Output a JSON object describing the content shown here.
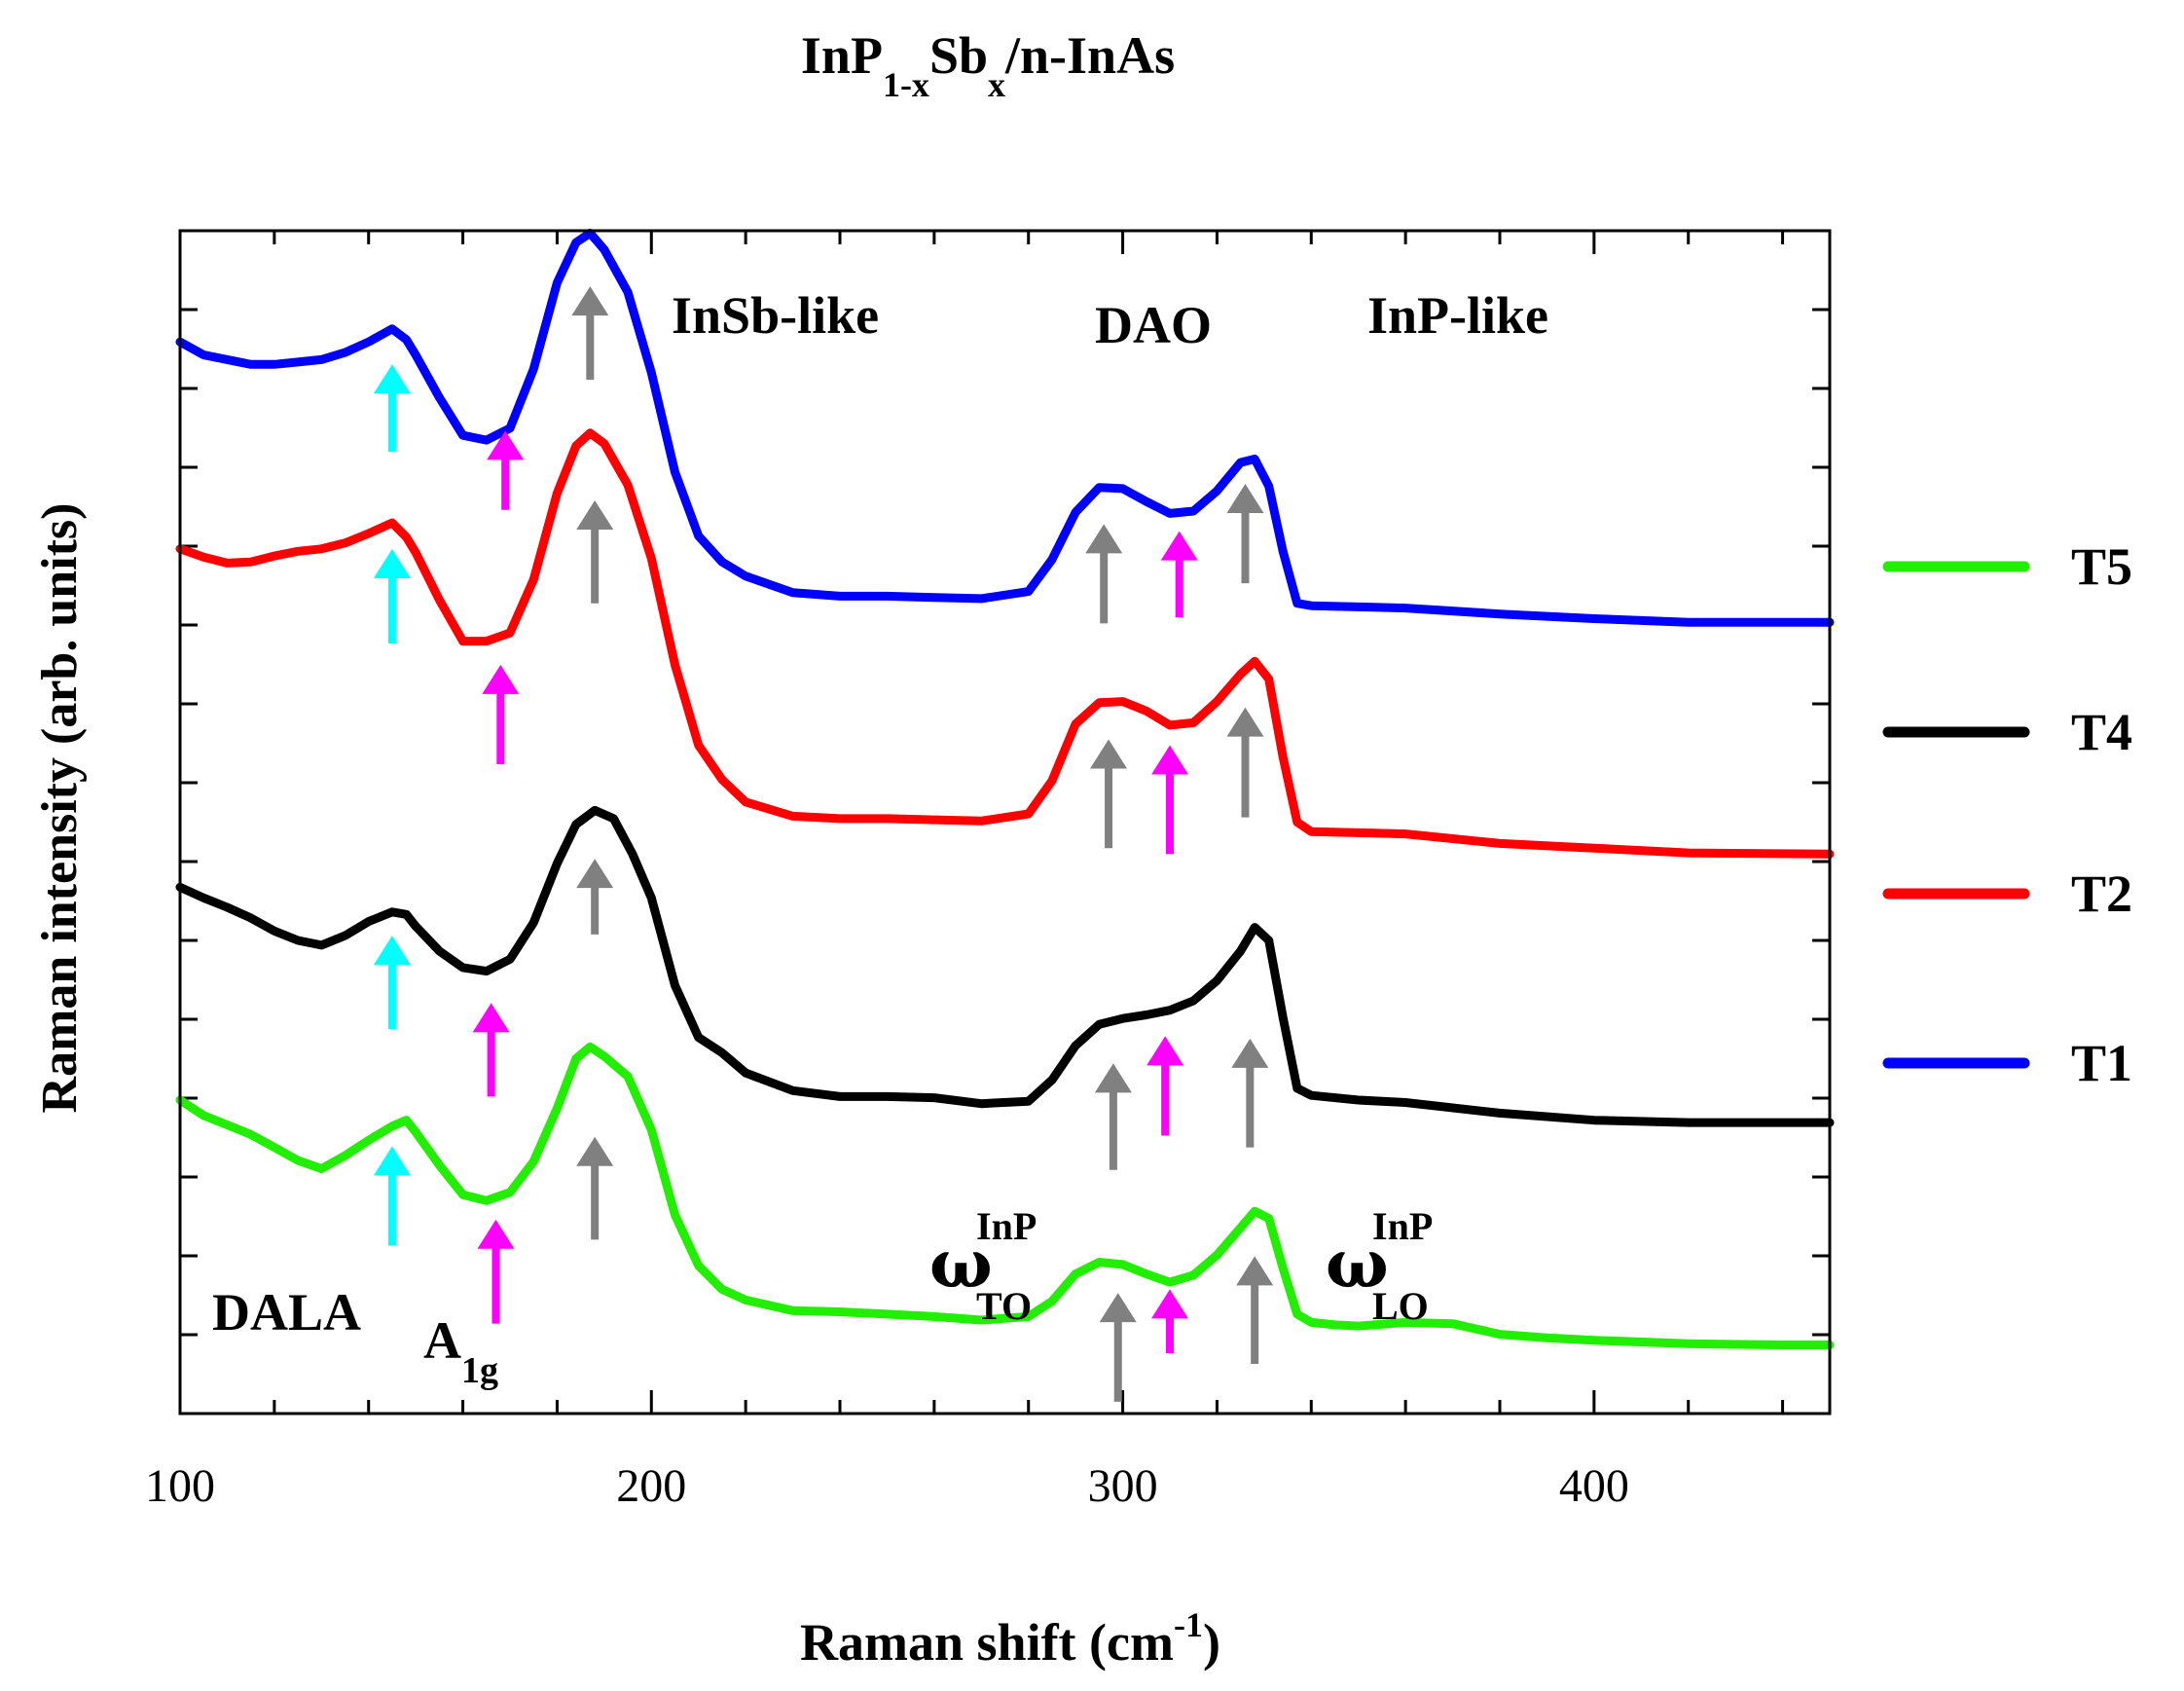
{
  "chart_data": {
    "type": "line",
    "title": {
      "parts": [
        {
          "text": "InP",
          "sub": false
        },
        {
          "text": "1-x",
          "sub": true
        },
        {
          "text": "Sb",
          "sub": false
        },
        {
          "text": "x",
          "sub": true
        },
        {
          "text": "/n-InAs",
          "sub": false
        }
      ]
    },
    "xlabel": {
      "main": "Raman shift (cm",
      "sup": "-1",
      "end": ")"
    },
    "ylabel": "Raman intensity (arb. units)",
    "xlim": [
      100,
      450
    ],
    "ylim": [
      0,
      100
    ],
    "xticks": [
      100,
      200,
      300,
      400
    ],
    "x_minor_step": 20,
    "y_minor_step": 6.667,
    "legend": {
      "placement": "right",
      "entries": [
        {
          "name": "T5",
          "color": "#22ee00"
        },
        {
          "name": "T4",
          "color": "#000000"
        },
        {
          "name": "T2",
          "color": "#ff0000"
        },
        {
          "name": "T1",
          "color": "#0000ff"
        }
      ]
    },
    "series": [
      {
        "name": "T5",
        "color": "#22ee00",
        "points": [
          [
            100,
            26.5
          ],
          [
            105,
            25.2
          ],
          [
            110,
            24.4
          ],
          [
            115,
            23.6
          ],
          [
            120,
            22.5
          ],
          [
            125,
            21.4
          ],
          [
            130,
            20.7
          ],
          [
            135,
            21.8
          ],
          [
            140,
            23.1
          ],
          [
            145,
            24.3
          ],
          [
            148,
            24.8
          ],
          [
            150,
            23.8
          ],
          [
            155,
            21.0
          ],
          [
            160,
            18.5
          ],
          [
            165,
            18.0
          ],
          [
            170,
            18.7
          ],
          [
            175,
            21.3
          ],
          [
            180,
            25.8
          ],
          [
            184,
            30.0
          ],
          [
            187,
            31.0
          ],
          [
            190,
            30.2
          ],
          [
            195,
            28.5
          ],
          [
            200,
            24.0
          ],
          [
            205,
            16.8
          ],
          [
            210,
            12.5
          ],
          [
            215,
            10.5
          ],
          [
            220,
            9.6
          ],
          [
            230,
            8.7
          ],
          [
            240,
            8.6
          ],
          [
            250,
            8.4
          ],
          [
            260,
            8.2
          ],
          [
            270,
            7.9
          ],
          [
            280,
            8.2
          ],
          [
            285,
            9.5
          ],
          [
            290,
            11.8
          ],
          [
            295,
            12.8
          ],
          [
            300,
            12.6
          ],
          [
            305,
            11.8
          ],
          [
            310,
            11.1
          ],
          [
            315,
            11.7
          ],
          [
            320,
            13.4
          ],
          [
            325,
            15.7
          ],
          [
            328,
            17.1
          ],
          [
            331,
            16.5
          ],
          [
            334,
            12.3
          ],
          [
            337,
            8.4
          ],
          [
            340,
            7.7
          ],
          [
            345,
            7.5
          ],
          [
            350,
            7.4
          ],
          [
            360,
            7.7
          ],
          [
            370,
            7.6
          ],
          [
            380,
            6.7
          ],
          [
            390,
            6.4
          ],
          [
            400,
            6.2
          ],
          [
            420,
            5.9
          ],
          [
            440,
            5.8
          ],
          [
            450,
            5.8
          ]
        ]
      },
      {
        "name": "T4",
        "color": "#000000",
        "points": [
          [
            100,
            44.5
          ],
          [
            105,
            43.6
          ],
          [
            110,
            42.8
          ],
          [
            115,
            41.9
          ],
          [
            120,
            40.8
          ],
          [
            125,
            40.0
          ],
          [
            130,
            39.6
          ],
          [
            135,
            40.4
          ],
          [
            140,
            41.6
          ],
          [
            145,
            42.4
          ],
          [
            148,
            42.2
          ],
          [
            150,
            41.2
          ],
          [
            155,
            39.1
          ],
          [
            160,
            37.7
          ],
          [
            165,
            37.4
          ],
          [
            170,
            38.4
          ],
          [
            175,
            41.5
          ],
          [
            180,
            46.5
          ],
          [
            184,
            49.8
          ],
          [
            188,
            51.0
          ],
          [
            192,
            50.3
          ],
          [
            196,
            47.3
          ],
          [
            200,
            43.6
          ],
          [
            205,
            36.2
          ],
          [
            210,
            31.8
          ],
          [
            215,
            30.5
          ],
          [
            220,
            28.8
          ],
          [
            230,
            27.3
          ],
          [
            240,
            26.8
          ],
          [
            250,
            26.8
          ],
          [
            260,
            26.7
          ],
          [
            270,
            26.2
          ],
          [
            280,
            26.4
          ],
          [
            285,
            28.2
          ],
          [
            290,
            31.1
          ],
          [
            295,
            32.9
          ],
          [
            300,
            33.4
          ],
          [
            305,
            33.7
          ],
          [
            310,
            34.1
          ],
          [
            315,
            34.9
          ],
          [
            320,
            36.6
          ],
          [
            325,
            39.1
          ],
          [
            328,
            41.1
          ],
          [
            331,
            40.0
          ],
          [
            334,
            33.5
          ],
          [
            337,
            27.5
          ],
          [
            340,
            26.9
          ],
          [
            350,
            26.5
          ],
          [
            360,
            26.3
          ],
          [
            380,
            25.4
          ],
          [
            400,
            24.8
          ],
          [
            420,
            24.6
          ],
          [
            450,
            24.6
          ]
        ]
      },
      {
        "name": "T2",
        "color": "#ff0000",
        "points": [
          [
            100,
            73.1
          ],
          [
            105,
            72.4
          ],
          [
            110,
            71.9
          ],
          [
            115,
            72.0
          ],
          [
            120,
            72.5
          ],
          [
            125,
            72.9
          ],
          [
            130,
            73.1
          ],
          [
            135,
            73.6
          ],
          [
            140,
            74.4
          ],
          [
            145,
            75.3
          ],
          [
            148,
            74.1
          ],
          [
            150,
            72.8
          ],
          [
            155,
            68.8
          ],
          [
            160,
            65.3
          ],
          [
            165,
            65.3
          ],
          [
            170,
            66.0
          ],
          [
            175,
            70.5
          ],
          [
            180,
            77.8
          ],
          [
            184,
            81.8
          ],
          [
            187,
            82.9
          ],
          [
            190,
            82.0
          ],
          [
            195,
            78.5
          ],
          [
            200,
            72.3
          ],
          [
            205,
            63.3
          ],
          [
            210,
            56.5
          ],
          [
            215,
            53.6
          ],
          [
            220,
            51.7
          ],
          [
            230,
            50.5
          ],
          [
            240,
            50.3
          ],
          [
            250,
            50.3
          ],
          [
            260,
            50.2
          ],
          [
            270,
            50.1
          ],
          [
            280,
            50.7
          ],
          [
            285,
            53.5
          ],
          [
            290,
            58.3
          ],
          [
            295,
            60.1
          ],
          [
            300,
            60.2
          ],
          [
            305,
            59.4
          ],
          [
            310,
            58.2
          ],
          [
            315,
            58.4
          ],
          [
            320,
            60.2
          ],
          [
            325,
            62.5
          ],
          [
            328,
            63.6
          ],
          [
            331,
            62.1
          ],
          [
            334,
            55.5
          ],
          [
            337,
            50.0
          ],
          [
            340,
            49.2
          ],
          [
            350,
            49.1
          ],
          [
            360,
            49.0
          ],
          [
            380,
            48.2
          ],
          [
            400,
            47.8
          ],
          [
            420,
            47.4
          ],
          [
            450,
            47.3
          ]
        ]
      },
      {
        "name": "T1",
        "color": "#0000ff",
        "points": [
          [
            100,
            90.6
          ],
          [
            105,
            89.5
          ],
          [
            110,
            89.1
          ],
          [
            115,
            88.7
          ],
          [
            120,
            88.7
          ],
          [
            125,
            88.9
          ],
          [
            130,
            89.1
          ],
          [
            135,
            89.7
          ],
          [
            140,
            90.6
          ],
          [
            145,
            91.7
          ],
          [
            148,
            90.8
          ],
          [
            150,
            89.5
          ],
          [
            155,
            85.9
          ],
          [
            160,
            82.7
          ],
          [
            165,
            82.3
          ],
          [
            170,
            83.3
          ],
          [
            175,
            88.3
          ],
          [
            180,
            95.6
          ],
          [
            184,
            99.0
          ],
          [
            187,
            99.8
          ],
          [
            190,
            98.4
          ],
          [
            195,
            94.8
          ],
          [
            200,
            88.0
          ],
          [
            205,
            79.6
          ],
          [
            210,
            74.2
          ],
          [
            215,
            72.0
          ],
          [
            220,
            70.8
          ],
          [
            230,
            69.4
          ],
          [
            240,
            69.1
          ],
          [
            250,
            69.1
          ],
          [
            260,
            69.0
          ],
          [
            270,
            68.9
          ],
          [
            280,
            69.5
          ],
          [
            285,
            72.2
          ],
          [
            290,
            76.2
          ],
          [
            295,
            78.3
          ],
          [
            300,
            78.2
          ],
          [
            305,
            77.1
          ],
          [
            310,
            76.1
          ],
          [
            315,
            76.3
          ],
          [
            320,
            78.0
          ],
          [
            325,
            80.4
          ],
          [
            328,
            80.7
          ],
          [
            331,
            78.4
          ],
          [
            334,
            72.9
          ],
          [
            337,
            68.5
          ],
          [
            340,
            68.3
          ],
          [
            350,
            68.2
          ],
          [
            360,
            68.1
          ],
          [
            380,
            67.6
          ],
          [
            400,
            67.2
          ],
          [
            420,
            66.9
          ],
          [
            450,
            66.9
          ]
        ]
      }
    ],
    "arrows": [
      {
        "series": "T1",
        "color": "#00ffff",
        "x": 145,
        "y0": 81.3,
        "y1": 88.7
      },
      {
        "series": "T1",
        "color": "#ff00ff",
        "x": 169,
        "y0": 76.4,
        "y1": 83.1
      },
      {
        "series": "T1",
        "color": "#808080",
        "x": 187,
        "y0": 87.4,
        "y1": 95.3
      },
      {
        "series": "T1",
        "color": "#808080",
        "x": 296,
        "y0": 66.8,
        "y1": 75.2
      },
      {
        "series": "T1",
        "color": "#ff00ff",
        "x": 312,
        "y0": 67.3,
        "y1": 74.6
      },
      {
        "series": "T1",
        "color": "#808080",
        "x": 326,
        "y0": 70.2,
        "y1": 78.6
      },
      {
        "series": "T2",
        "color": "#00ffff",
        "x": 145,
        "y0": 65.1,
        "y1": 73.1
      },
      {
        "series": "T2",
        "color": "#ff00ff",
        "x": 168,
        "y0": 54.9,
        "y1": 63.3
      },
      {
        "series": "T2",
        "color": "#808080",
        "x": 188,
        "y0": 68.5,
        "y1": 77.2
      },
      {
        "series": "T2",
        "color": "#808080",
        "x": 297,
        "y0": 47.8,
        "y1": 57.0
      },
      {
        "series": "T2",
        "color": "#ff00ff",
        "x": 310,
        "y0": 47.3,
        "y1": 56.5
      },
      {
        "series": "T2",
        "color": "#808080",
        "x": 326,
        "y0": 50.4,
        "y1": 59.7
      },
      {
        "series": "T4",
        "color": "#00ffff",
        "x": 145,
        "y0": 32.5,
        "y1": 40.4
      },
      {
        "series": "T4",
        "color": "#ff00ff",
        "x": 166,
        "y0": 26.8,
        "y1": 34.7
      },
      {
        "series": "T4",
        "color": "#808080",
        "x": 188,
        "y0": 40.5,
        "y1": 46.9
      },
      {
        "series": "T4",
        "color": "#808080",
        "x": 298,
        "y0": 20.6,
        "y1": 29.6
      },
      {
        "series": "T4",
        "color": "#ff00ff",
        "x": 309,
        "y0": 23.5,
        "y1": 31.9
      },
      {
        "series": "T4",
        "color": "#808080",
        "x": 327,
        "y0": 22.5,
        "y1": 31.7
      },
      {
        "series": "T5",
        "color": "#00ffff",
        "x": 145,
        "y0": 14.2,
        "y1": 22.6
      },
      {
        "series": "T5",
        "color": "#ff00ff",
        "x": 167,
        "y0": 7.6,
        "y1": 16.4
      },
      {
        "series": "T5",
        "color": "#808080",
        "x": 188,
        "y0": 14.7,
        "y1": 23.4
      },
      {
        "series": "T5",
        "color": "#808080",
        "x": 299,
        "y0": 1.0,
        "y1": 10.2
      },
      {
        "series": "T5",
        "color": "#ff00ff",
        "x": 310,
        "y0": 5.1,
        "y1": 10.5
      },
      {
        "series": "T5",
        "color": "#808080",
        "x": 328,
        "y0": 4.2,
        "y1": 13.3
      }
    ],
    "annotations": {
      "insb_like": "InSb-like",
      "dao": "DAO",
      "inp_like": "InP-like",
      "dala": "DALA",
      "a1g": {
        "main": "A",
        "sub": "1g"
      },
      "omega_to": {
        "main": "ω",
        "sup": "InP",
        "sub": "TO"
      },
      "omega_lo": {
        "main": "ω",
        "sup": "InP",
        "sub": "LO"
      }
    }
  }
}
